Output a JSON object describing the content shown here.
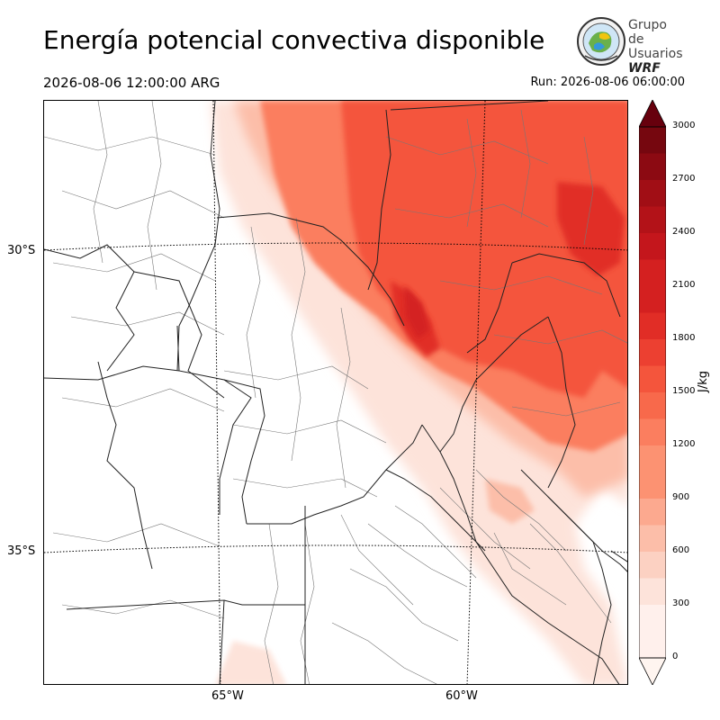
{
  "header": {
    "title": "Energía potencial convectiva disponible",
    "valid_time": "2026-08-06 12:00:00 ARG",
    "run_time": "Run: 2026-08-06 06:00:00"
  },
  "logo": {
    "line1": "Grupo de",
    "line2": "Usuarios",
    "line3": "WRF"
  },
  "map": {
    "variable": "CAPE",
    "lat_labels": [
      "30°S",
      "35°S"
    ],
    "lon_labels": [
      "65°W",
      "60°W"
    ],
    "gridlines": "dotted"
  },
  "colorbar": {
    "unit": "J/kg",
    "ticks": [
      "0",
      "300",
      "600",
      "900",
      "1200",
      "1500",
      "1800",
      "2100",
      "2400",
      "2700",
      "3000"
    ],
    "levels": [
      0,
      150,
      300,
      450,
      600,
      750,
      900,
      1050,
      1200,
      1350,
      1500,
      1650,
      1800,
      1950,
      2100,
      2250,
      2400,
      2550,
      2700,
      2850,
      3000
    ],
    "colors": [
      "#fff0ec",
      "#fde3da",
      "#fcd1c2",
      "#fcbea9",
      "#fca98f",
      "#fc9272",
      "#fb7e5f",
      "#f8694b",
      "#f4553c",
      "#ec4031",
      "#e12d26",
      "#d42020",
      "#c4161c",
      "#b31218",
      "#a10e15",
      "#8c0a12",
      "#76070f"
    ],
    "extend": "both"
  }
}
